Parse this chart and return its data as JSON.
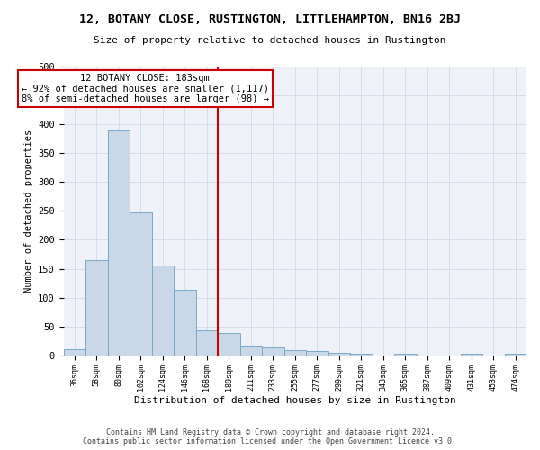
{
  "title": "12, BOTANY CLOSE, RUSTINGTON, LITTLEHAMPTON, BN16 2BJ",
  "subtitle": "Size of property relative to detached houses in Rustington",
  "xlabel": "Distribution of detached houses by size in Rustington",
  "ylabel": "Number of detached properties",
  "bar_color": "#c8d8e8",
  "bar_edge_color": "#7aaac8",
  "categories": [
    "36sqm",
    "58sqm",
    "80sqm",
    "102sqm",
    "124sqm",
    "146sqm",
    "168sqm",
    "189sqm",
    "211sqm",
    "233sqm",
    "255sqm",
    "277sqm",
    "299sqm",
    "321sqm",
    "343sqm",
    "365sqm",
    "387sqm",
    "409sqm",
    "431sqm",
    "453sqm",
    "474sqm"
  ],
  "values": [
    11,
    165,
    390,
    248,
    155,
    113,
    43,
    38,
    17,
    14,
    9,
    7,
    5,
    3,
    0,
    2,
    0,
    0,
    2,
    0,
    3
  ],
  "vline_index": 7,
  "vline_color": "#cc0000",
  "annotation_text": "12 BOTANY CLOSE: 183sqm\n← 92% of detached houses are smaller (1,117)\n8% of semi-detached houses are larger (98) →",
  "annotation_box_color": "#ffffff",
  "annotation_box_edge_color": "#cc0000",
  "ylim": [
    0,
    500
  ],
  "yticks": [
    0,
    50,
    100,
    150,
    200,
    250,
    300,
    350,
    400,
    450,
    500
  ],
  "grid_color": "#d0d8e8",
  "bg_color": "#eef2f8",
  "footer": "Contains HM Land Registry data © Crown copyright and database right 2024.\nContains public sector information licensed under the Open Government Licence v3.0."
}
